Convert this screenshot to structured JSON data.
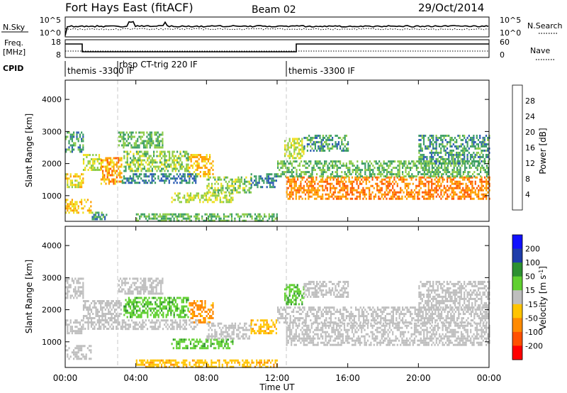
{
  "header": {
    "station": "Fort Hays East (fitACF)",
    "beam": "Beam 02",
    "date": "29/Oct/2014"
  },
  "noise_panel": {
    "left_label": "N.Sky",
    "right_label": "N.Search",
    "left_ticks": [
      "10^5",
      "10^0"
    ],
    "right_ticks": [
      "10^5",
      "10^0"
    ]
  },
  "freq_panel": {
    "left_label_1": "Freq.",
    "left_label_2": "[MHz]",
    "right_label": "Nave",
    "left_ticks": [
      "18",
      "8"
    ],
    "right_ticks": [
      "60",
      "0"
    ]
  },
  "cpid_panel": {
    "label": "CPID",
    "modes": [
      {
        "start_hour": 0.0,
        "name": "themis -3300 IF"
      },
      {
        "start_hour": 3.0,
        "name": "rbsp CT-trig 220 IF"
      },
      {
        "start_hour": 12.5,
        "name": "themis -3300 IF"
      }
    ]
  },
  "axes": {
    "x_ticks": [
      "00:00",
      "04:00",
      "08:00",
      "12:00",
      "16:00",
      "20:00",
      "00:00"
    ],
    "x_tick_hours": [
      0,
      4,
      8,
      12,
      16,
      20,
      24
    ],
    "xlabel": "Time UT",
    "ylabel": "Slant Range [km]",
    "y_ticks": [
      1000,
      2000,
      3000,
      4000
    ],
    "ylim": [
      200,
      4600
    ],
    "xlim": [
      0,
      24
    ]
  },
  "power_colorbar": {
    "label": "Power [dB]",
    "ticks": [
      "28",
      "24",
      "20",
      "16",
      "12",
      "8",
      "4"
    ],
    "colors": [
      "#ff0000",
      "#ff5a00",
      "#ffa000",
      "#f0e020",
      "#8ccc48",
      "#3c9e64",
      "#2c5cb4",
      "#0000ff"
    ]
  },
  "velocity_colorbar": {
    "label": "Velocity [m s-1]",
    "label_main": "Velocity [m s",
    "label_sup": "-1",
    "label_end": "]",
    "ticks": [
      "200",
      "100",
      "50",
      "15",
      "-15",
      "-50",
      "-100",
      "-200"
    ],
    "colors": [
      "#1010ff",
      "#1e3caa",
      "#2c9030",
      "#60d030",
      "#bebebe",
      "#ffc400",
      "#ff8a00",
      "#ff5000",
      "#ff0000"
    ]
  },
  "chart_data": [
    {
      "type": "heatmap",
      "title": "Power",
      "xlabel": "Time UT",
      "ylabel": "Slant Range [km]",
      "xlim": [
        0,
        24
      ],
      "ylim": [
        200,
        4600
      ],
      "colorbar": "power",
      "bands": [
        {
          "x": [
            0.0,
            1.0
          ],
          "y": [
            1300,
            1700
          ],
          "level": 18
        },
        {
          "x": [
            1.0,
            2.0
          ],
          "y": [
            1800,
            2300
          ],
          "level": 16
        },
        {
          "x": [
            2.0,
            3.2
          ],
          "y": [
            1400,
            2200
          ],
          "level": 22
        },
        {
          "x": [
            0.0,
            1.5
          ],
          "y": [
            500,
            900
          ],
          "level": 20
        },
        {
          "x": [
            1.5,
            2.3
          ],
          "y": [
            300,
            500
          ],
          "level": 10
        },
        {
          "x": [
            0.0,
            1.0
          ],
          "y": [
            2400,
            3000
          ],
          "level": 10
        },
        {
          "x": [
            3.0,
            5.5
          ],
          "y": [
            2500,
            3000
          ],
          "level": 12
        },
        {
          "x": [
            3.3,
            7.0
          ],
          "y": [
            1800,
            2400
          ],
          "level": 14
        },
        {
          "x": [
            7.0,
            8.4
          ],
          "y": [
            1600,
            2300
          ],
          "level": 20
        },
        {
          "x": [
            3.2,
            7.5
          ],
          "y": [
            1400,
            1700
          ],
          "level": 8
        },
        {
          "x": [
            6.0,
            9.5
          ],
          "y": [
            800,
            1100
          ],
          "level": 16
        },
        {
          "x": [
            8.0,
            10.5
          ],
          "y": [
            1100,
            1600
          ],
          "level": 14
        },
        {
          "x": [
            10.5,
            12.0
          ],
          "y": [
            1300,
            1700
          ],
          "level": 8
        },
        {
          "x": [
            4.0,
            12.0
          ],
          "y": [
            250,
            450
          ],
          "level": 12
        },
        {
          "x": [
            12.4,
            13.5
          ],
          "y": [
            2200,
            2800
          ],
          "level": 16
        },
        {
          "x": [
            13.5,
            16.0
          ],
          "y": [
            2400,
            2900
          ],
          "level": 10
        },
        {
          "x": [
            12.5,
            24.0
          ],
          "y": [
            900,
            1600
          ],
          "level": 24
        },
        {
          "x": [
            12.0,
            24.0
          ],
          "y": [
            1600,
            2100
          ],
          "level": 12
        },
        {
          "x": [
            20.0,
            24.0
          ],
          "y": [
            2000,
            2900
          ],
          "level": 10
        }
      ]
    },
    {
      "type": "heatmap",
      "title": "Velocity",
      "xlabel": "Time UT",
      "ylabel": "Slant Range [km]",
      "xlim": [
        0,
        24
      ],
      "ylim": [
        200,
        4600
      ],
      "colorbar": "velocity",
      "bands": [
        {
          "x": [
            0.0,
            1.0
          ],
          "y": [
            1300,
            1700
          ],
          "level": 0
        },
        {
          "x": [
            1.0,
            3.2
          ],
          "y": [
            1400,
            2300
          ],
          "level": 0
        },
        {
          "x": [
            0.0,
            1.5
          ],
          "y": [
            500,
            900
          ],
          "level": 0
        },
        {
          "x": [
            0.0,
            1.0
          ],
          "y": [
            2400,
            3000
          ],
          "level": 0
        },
        {
          "x": [
            3.0,
            5.5
          ],
          "y": [
            2500,
            3000
          ],
          "level": 0
        },
        {
          "x": [
            3.3,
            7.0
          ],
          "y": [
            1800,
            2400
          ],
          "level": 40
        },
        {
          "x": [
            7.0,
            8.4
          ],
          "y": [
            1600,
            2300
          ],
          "level": -60
        },
        {
          "x": [
            3.2,
            7.5
          ],
          "y": [
            1400,
            1700
          ],
          "level": 0
        },
        {
          "x": [
            6.0,
            9.5
          ],
          "y": [
            800,
            1100
          ],
          "level": 40
        },
        {
          "x": [
            8.0,
            10.5
          ],
          "y": [
            1100,
            1600
          ],
          "level": 0
        },
        {
          "x": [
            10.5,
            12.0
          ],
          "y": [
            1300,
            1700
          ],
          "level": -40
        },
        {
          "x": [
            4.0,
            12.0
          ],
          "y": [
            250,
            450
          ],
          "level": -40
        },
        {
          "x": [
            12.4,
            13.5
          ],
          "y": [
            2200,
            2800
          ],
          "level": 40
        },
        {
          "x": [
            13.5,
            16.0
          ],
          "y": [
            2400,
            2900
          ],
          "level": 0
        },
        {
          "x": [
            12.5,
            24.0
          ],
          "y": [
            900,
            1600
          ],
          "level": 0
        },
        {
          "x": [
            12.0,
            24.0
          ],
          "y": [
            1600,
            2100
          ],
          "level": 0
        },
        {
          "x": [
            20.0,
            24.0
          ],
          "y": [
            2000,
            2900
          ],
          "level": 0
        }
      ]
    }
  ]
}
